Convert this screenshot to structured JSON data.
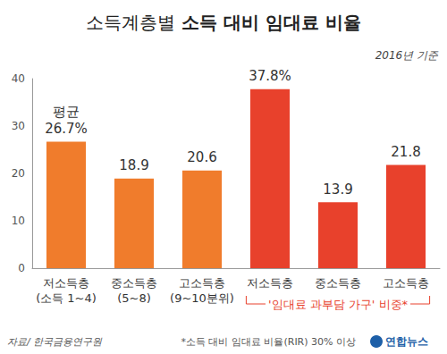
{
  "chart_data": {
    "type": "bar",
    "title": "소득계층별 소득 대비 임대료 비율",
    "subtitle": "2016년 기준",
    "categories": [
      "저소득층\n(소득 1~4)",
      "중소득층\n(5~8)",
      "고소득층\n(9~10분위)",
      "저소득층",
      "중소득층",
      "고소득층"
    ],
    "values": [
      26.7,
      18.9,
      20.6,
      37.8,
      13.9,
      21.8
    ],
    "value_labels": [
      "평균\n26.7%",
      "18.9",
      "20.6",
      "37.8%",
      "13.9",
      "21.8"
    ],
    "colors": [
      "#f07c2c",
      "#f07c2c",
      "#f07c2c",
      "#e8412c",
      "#e8412c",
      "#e8412c"
    ],
    "data_labels": true,
    "ylim": [
      0,
      40
    ],
    "yticks": [
      0,
      10,
      20,
      30,
      40
    ],
    "grid": false,
    "annotations": {
      "group": "'임대료 과부담 가구' 비중*",
      "note": "*소득 대비 임대료 비율(RIR) 30% 이상",
      "source": "자료/ 한국금융연구원",
      "credit": "연합뉴스"
    }
  }
}
